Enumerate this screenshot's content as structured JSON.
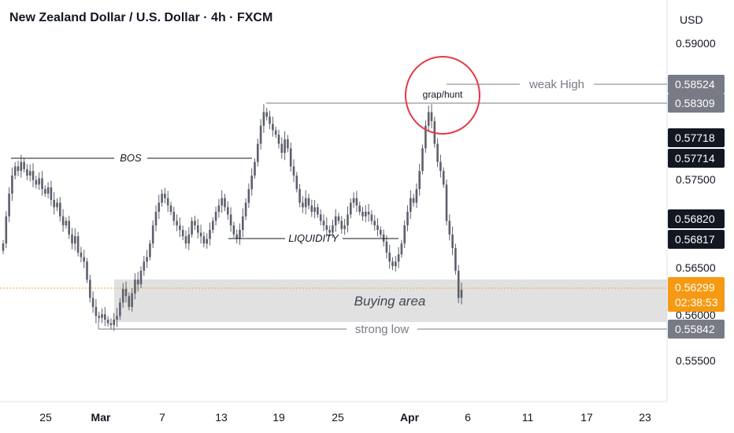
{
  "header": {
    "title": "New Zealand Dollar / U.S. Dollar · 4h · FXCM",
    "currency": "USD"
  },
  "chart_data": {
    "type": "candlestick",
    "y_ticks": [
      "0.59000",
      "0.57500",
      "0.56500",
      "0.56000",
      "0.55500"
    ],
    "x_ticks": [
      {
        "label": "25",
        "bold": false
      },
      {
        "label": "Mar",
        "bold": true
      },
      {
        "label": "7",
        "bold": false
      },
      {
        "label": "13",
        "bold": false
      },
      {
        "label": "19",
        "bold": false
      },
      {
        "label": "25",
        "bold": false
      },
      {
        "label": "Apr",
        "bold": true
      },
      {
        "label": "6",
        "bold": false
      },
      {
        "label": "11",
        "bold": false
      },
      {
        "label": "17",
        "bold": false
      },
      {
        "label": "23",
        "bold": false
      }
    ],
    "price_labels": [
      {
        "value": "0.58524",
        "style": "grey"
      },
      {
        "value": "0.58309",
        "style": "grey"
      },
      {
        "value": "0.57718",
        "style": "dark"
      },
      {
        "value": "0.57714",
        "style": "dark"
      },
      {
        "value": "0.56820",
        "style": "dark"
      },
      {
        "value": "0.56817",
        "style": "dark"
      },
      {
        "value": "0.56299",
        "style": "orange"
      },
      {
        "value": "02:38:53",
        "style": "orange"
      },
      {
        "value": "0.55842",
        "style": "grey"
      }
    ],
    "annotations": {
      "bos": "BOS",
      "liquidity": "LIQUIDITY",
      "grap_hunt": "grap/hunt",
      "weak_high": "weak High",
      "buying_area": "Buying area",
      "strong_low": "strong low"
    },
    "closes": [
      0.568,
      0.571,
      0.5735,
      0.5755,
      0.5765,
      0.576,
      0.577,
      0.5762,
      0.5755,
      0.576,
      0.575,
      0.5745,
      0.5752,
      0.574,
      0.5735,
      0.5742,
      0.5728,
      0.572,
      0.5725,
      0.571,
      0.57,
      0.5705,
      0.569,
      0.568,
      0.5688,
      0.567,
      0.5665,
      0.566,
      0.564,
      0.562,
      0.561,
      0.56,
      0.5598,
      0.5602,
      0.5596,
      0.5592,
      0.559,
      0.5596,
      0.56,
      0.5615,
      0.563,
      0.5622,
      0.561,
      0.5625,
      0.564,
      0.5635,
      0.565,
      0.566,
      0.5665,
      0.568,
      0.57,
      0.5715,
      0.5725,
      0.5735,
      0.573,
      0.5722,
      0.5715,
      0.5705,
      0.57,
      0.5695,
      0.5688,
      0.568,
      0.569,
      0.5705,
      0.57,
      0.5692,
      0.5688,
      0.568,
      0.5685,
      0.5695,
      0.5705,
      0.5715,
      0.5722,
      0.573,
      0.572,
      0.5712,
      0.57,
      0.569,
      0.5685,
      0.5695,
      0.571,
      0.5725,
      0.574,
      0.5755,
      0.577,
      0.579,
      0.581,
      0.5825,
      0.582,
      0.5812,
      0.5805,
      0.58,
      0.579,
      0.578,
      0.5795,
      0.5785,
      0.5765,
      0.5755,
      0.574,
      0.5725,
      0.572,
      0.573,
      0.5722,
      0.5715,
      0.572,
      0.5712,
      0.5705,
      0.57,
      0.5695,
      0.5692,
      0.57,
      0.571,
      0.5705,
      0.5696,
      0.57,
      0.5712,
      0.5725,
      0.573,
      0.5722,
      0.5715,
      0.571,
      0.5715,
      0.5712,
      0.5705,
      0.57,
      0.5695,
      0.569,
      0.5682,
      0.567,
      0.566,
      0.5655,
      0.566,
      0.5668,
      0.568,
      0.57,
      0.5715,
      0.573,
      0.5725,
      0.574,
      0.576,
      0.5785,
      0.581,
      0.5825,
      0.5815,
      0.579,
      0.577,
      0.576,
      0.5745,
      0.5705,
      0.569,
      0.5675,
      0.565,
      0.562,
      0.5629
    ]
  }
}
